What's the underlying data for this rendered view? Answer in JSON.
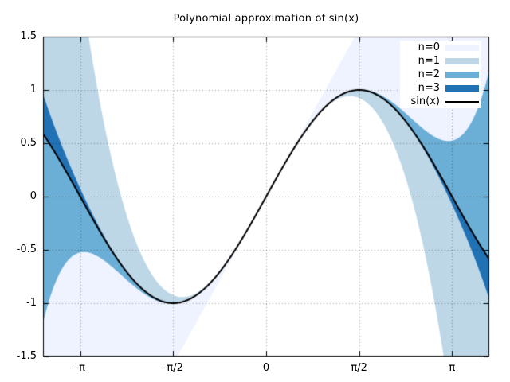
{
  "chart_data": {
    "type": "area",
    "title": "Polynomial approximation of sin(x)",
    "x_range": [
      -3.7699,
      3.7699
    ],
    "y_range": [
      -1.5,
      1.5
    ],
    "x_ticks": [
      {
        "label": "-π",
        "value": -3.14159265
      },
      {
        "label": "-π/2",
        "value": -1.57079633
      },
      {
        "label": "0",
        "value": 0
      },
      {
        "label": "π/2",
        "value": 1.57079633
      },
      {
        "label": "π",
        "value": 3.14159265
      }
    ],
    "y_ticks": [
      {
        "label": "-1.5",
        "value": -1.5
      },
      {
        "label": "-1",
        "value": -1
      },
      {
        "label": "-0.5",
        "value": -0.5
      },
      {
        "label": "0",
        "value": 0
      },
      {
        "label": "0.5",
        "value": 0.5
      },
      {
        "label": "1",
        "value": 1
      },
      {
        "label": "1.5",
        "value": 1.5
      }
    ],
    "grid": {
      "show": true,
      "style": "dotted",
      "color": "rgba(0,0,0,0.38)"
    },
    "background": "#ffffff",
    "axis_color": "#000000",
    "legend": {
      "position": "top-right",
      "background": "#ffffff"
    },
    "series": [
      {
        "name": "n=0",
        "kind": "fill_between_sin_and_taylor",
        "taylor_odd_coefficients": [
          1
        ],
        "color": "#eff3ff"
      },
      {
        "name": "n=1",
        "kind": "fill_between_sin_and_taylor",
        "taylor_odd_coefficients": [
          1,
          -0.1666666667
        ],
        "color": "#bdd7e7"
      },
      {
        "name": "n=2",
        "kind": "fill_between_sin_and_taylor",
        "taylor_odd_coefficients": [
          1,
          -0.1666666667,
          0.0083333333
        ],
        "color": "#6baed6"
      },
      {
        "name": "n=3",
        "kind": "fill_between_sin_and_taylor",
        "taylor_odd_coefficients": [
          1,
          -0.1666666667,
          0.0083333333,
          -0.0001984127
        ],
        "color": "#2171b5"
      }
    ],
    "line_series": {
      "name": "sin(x)",
      "function": "sin",
      "color": "#000000",
      "width": 2
    }
  }
}
